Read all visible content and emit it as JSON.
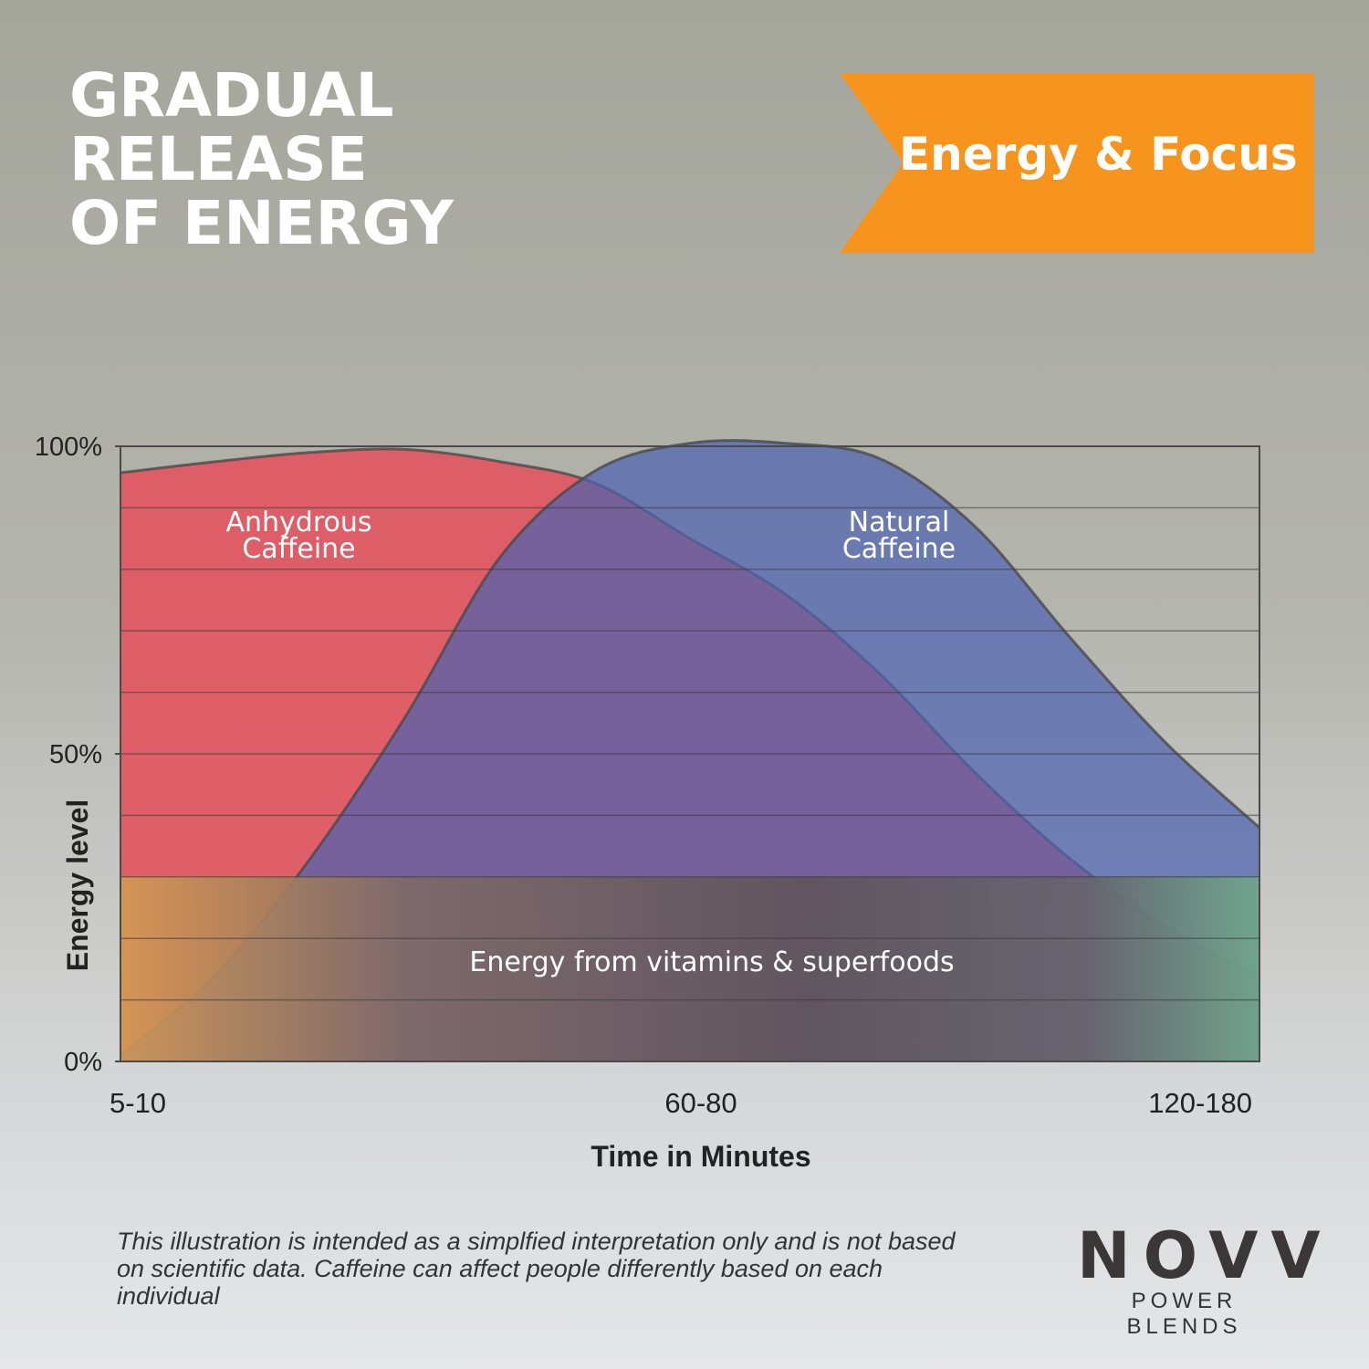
{
  "chart_data": {
    "type": "area",
    "title": "GRADUAL RELEASE OF ENERGY",
    "badge": "Energy & Focus",
    "xlabel": "Time in Minutes",
    "ylabel": "Energy level",
    "categories": [
      "5-10",
      null,
      null,
      null,
      null,
      null,
      "60-80",
      null,
      null,
      null,
      null,
      null,
      "120-180"
    ],
    "series": [
      {
        "name": "Anhydrous Caffeine",
        "color": "#e05a63",
        "values": [
          95.7,
          97.5,
          99,
          99.5,
          97.5,
          94,
          85,
          76,
          63,
          47,
          33,
          22,
          14
        ]
      },
      {
        "name": "Natural Caffeine",
        "color": "#4d63b0",
        "values": [
          1,
          14,
          33,
          56,
          82,
          96,
          100.5,
          100.5,
          98,
          87,
          69,
          52,
          38
        ]
      },
      {
        "name": "Energy from vitamins & superfoods",
        "color": "#6b5c62",
        "values": [
          30,
          30,
          30,
          30,
          30,
          30,
          30,
          30,
          30,
          30,
          30,
          30,
          30
        ]
      }
    ],
    "ylim": [
      0,
      100
    ],
    "yticks": [
      {
        "value": 0,
        "label": "0%"
      },
      {
        "value": 50,
        "label": "50%"
      },
      {
        "value": 100,
        "label": "100%"
      }
    ],
    "ygrid": [
      0,
      10,
      20,
      30,
      40,
      50,
      60,
      70,
      80,
      90,
      100
    ],
    "grid": true
  },
  "disclaimer": "This illustration is intended as a simplfied interpretation only and is not based on scientific data. Caffeine can affect people differently based on each individual",
  "brand": {
    "name": "NOVV",
    "tagline": "POWER BLENDS"
  }
}
